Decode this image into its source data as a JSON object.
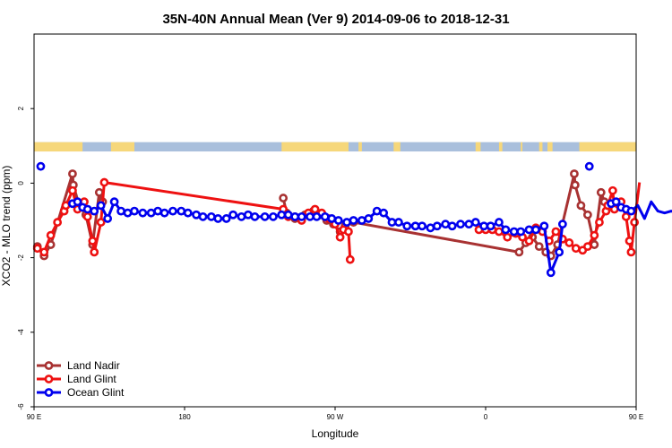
{
  "chart_data": {
    "type": "line",
    "title": "35N-40N Annual Mean (Ver 9)   2014-09-06 to 2018-12-31",
    "xlabel": "Longitude",
    "ylabel": "XCO2 - MLO trend (ppm)",
    "xlim": [
      90,
      450
    ],
    "ylim": [
      -6,
      4
    ],
    "x_ticks": [
      {
        "value": 90,
        "label": "90 E"
      },
      {
        "value": 180,
        "label": "180"
      },
      {
        "value": 270,
        "label": "90 W"
      },
      {
        "value": 360,
        "label": "0"
      },
      {
        "value": 450,
        "label": "90 E"
      },
      {
        "value": 540,
        "label": "180"
      }
    ],
    "y_ticks": [
      {
        "value": -6,
        "label": "-6"
      },
      {
        "value": -4,
        "label": "-4"
      },
      {
        "value": -2,
        "label": "-2"
      },
      {
        "value": 0,
        "label": "0"
      },
      {
        "value": 2,
        "label": "2"
      }
    ],
    "grid": false,
    "legend_position": "bottom-left",
    "land_ocean_band": {
      "y_range": [
        0.85,
        1.1
      ],
      "ocean_color": "#a9bfdc",
      "land_color": "#f6d77a",
      "land_segments": [
        [
          90,
          119
        ],
        [
          136,
          150
        ],
        [
          238,
          278
        ],
        [
          284,
          286
        ],
        [
          305,
          309
        ],
        [
          354,
          357
        ],
        [
          368,
          370
        ],
        [
          381,
          382
        ],
        [
          392,
          394
        ],
        [
          397,
          400
        ],
        [
          416,
          458
        ],
        [
          472,
          486
        ]
      ]
    },
    "series": [
      {
        "name": "Land Nadir",
        "color": "#a83232",
        "points": [
          [
            92,
            -1.7
          ],
          [
            96,
            -1.95
          ],
          [
            100,
            -1.65
          ],
          [
            113,
            0.25
          ],
          [
            113.5,
            -0.05
          ],
          [
            117,
            -0.6
          ],
          [
            121,
            -0.85
          ],
          [
            125,
            -1.65
          ],
          [
            129,
            -0.25
          ],
          [
            131,
            -0.5
          ],
          [
            145,
            null
          ],
          [
            239,
            -0.4
          ],
          [
            241,
            -0.8
          ],
          [
            246,
            -0.95
          ],
          [
            252,
            -0.85
          ],
          [
            257,
            -0.75
          ],
          [
            261,
            -0.85
          ],
          [
            265,
            -1.0
          ],
          [
            269,
            -1.1
          ],
          [
            273,
            -1.3
          ],
          [
            276,
            -1.15
          ],
          [
            281,
            -1.05
          ],
          [
            380,
            -1.85
          ],
          [
            384,
            -1.6
          ],
          [
            388,
            -1.45
          ],
          [
            392,
            -1.7
          ],
          [
            396,
            -1.85
          ],
          [
            399,
            -1.95
          ],
          [
            403,
            -1.65
          ],
          [
            413,
            0.25
          ],
          [
            413.5,
            -0.05
          ],
          [
            417,
            -0.6
          ],
          [
            421,
            -0.85
          ],
          [
            425,
            -1.65
          ],
          [
            429,
            -0.25
          ],
          [
            431,
            -0.5
          ]
        ]
      },
      {
        "name": "Land Glint",
        "color": "#ee1111",
        "points": [
          [
            92,
            -1.75
          ],
          [
            96,
            -1.85
          ],
          [
            100,
            -1.4
          ],
          [
            104,
            -1.05
          ],
          [
            108,
            -0.75
          ],
          [
            109,
            -0.6
          ],
          [
            113,
            -0.2
          ],
          [
            116,
            -0.7
          ],
          [
            120,
            -0.5
          ],
          [
            122,
            -0.9
          ],
          [
            125,
            -1.55
          ],
          [
            126,
            -1.85
          ],
          [
            130,
            -1.05
          ],
          [
            132,
            0.02
          ],
          [
            239,
            -0.7
          ],
          [
            242,
            -0.9
          ],
          [
            246,
            -0.9
          ],
          [
            250,
            -1.0
          ],
          [
            254,
            -0.8
          ],
          [
            258,
            -0.7
          ],
          [
            262,
            -0.8
          ],
          [
            266,
            -0.95
          ],
          [
            270,
            -1.1
          ],
          [
            273,
            -1.45
          ],
          [
            275,
            -1.25
          ],
          [
            278,
            -1.3
          ],
          [
            279,
            -2.05
          ],
          [
            340,
            null
          ],
          [
            356,
            -1.25
          ],
          [
            360,
            -1.25
          ],
          [
            364,
            -1.25
          ],
          [
            368,
            -1.3
          ],
          [
            373,
            -1.45
          ],
          [
            378,
            -1.35
          ],
          [
            382,
            -1.45
          ],
          [
            386,
            -1.55
          ],
          [
            390,
            -1.2
          ],
          [
            394,
            -1.3
          ],
          [
            398,
            -1.55
          ],
          [
            402,
            -1.3
          ],
          [
            406,
            -1.5
          ],
          [
            410,
            -1.6
          ],
          [
            414,
            -1.75
          ],
          [
            418,
            -1.8
          ],
          [
            421,
            -1.7
          ],
          [
            425,
            -1.4
          ],
          [
            428,
            -1.05
          ],
          [
            432,
            -0.75
          ],
          [
            433,
            -0.6
          ],
          [
            436,
            -0.2
          ],
          [
            437,
            -0.7
          ],
          [
            441,
            -0.5
          ],
          [
            444,
            -0.9
          ],
          [
            446,
            -1.55
          ],
          [
            447,
            -1.85
          ],
          [
            449,
            -1.05
          ],
          [
            452,
            0.02
          ]
        ]
      },
      {
        "name": "Ocean Glint",
        "color": "#0000ee",
        "points": [
          [
            94,
            0.45
          ],
          [
            95,
            null
          ],
          [
            113,
            -0.55
          ],
          [
            116,
            -0.5
          ],
          [
            119,
            -0.65
          ],
          [
            122,
            -0.7
          ],
          [
            126,
            -0.75
          ],
          [
            130,
            -0.6
          ],
          [
            134,
            -0.95
          ],
          [
            138,
            -0.5
          ],
          [
            142,
            -0.75
          ],
          [
            146,
            -0.8
          ],
          [
            150,
            -0.75
          ],
          [
            155,
            -0.8
          ],
          [
            160,
            -0.8
          ],
          [
            164,
            -0.75
          ],
          [
            168,
            -0.8
          ],
          [
            173,
            -0.75
          ],
          [
            178,
            -0.75
          ],
          [
            182,
            -0.8
          ],
          [
            187,
            -0.85
          ],
          [
            191,
            -0.9
          ],
          [
            196,
            -0.9
          ],
          [
            200,
            -0.95
          ],
          [
            205,
            -0.95
          ],
          [
            209,
            -0.85
          ],
          [
            214,
            -0.9
          ],
          [
            218,
            -0.85
          ],
          [
            222,
            -0.9
          ],
          [
            228,
            -0.9
          ],
          [
            233,
            -0.9
          ],
          [
            238,
            -0.85
          ],
          [
            242,
            -0.85
          ],
          [
            246,
            -0.9
          ],
          [
            250,
            -0.9
          ],
          [
            255,
            -0.9
          ],
          [
            259,
            -0.9
          ],
          [
            264,
            -0.9
          ],
          [
            268,
            -0.95
          ],
          [
            272,
            -1.0
          ],
          [
            277,
            -1.05
          ],
          [
            281,
            -1.0
          ],
          [
            286,
            -1.0
          ],
          [
            290,
            -0.95
          ],
          [
            295,
            -0.75
          ],
          [
            299,
            -0.8
          ],
          [
            304,
            -1.05
          ],
          [
            308,
            -1.05
          ],
          [
            313,
            -1.15
          ],
          [
            318,
            -1.15
          ],
          [
            322,
            -1.15
          ],
          [
            327,
            -1.2
          ],
          [
            331,
            -1.15
          ],
          [
            336,
            -1.1
          ],
          [
            340,
            -1.15
          ],
          [
            345,
            -1.1
          ],
          [
            350,
            -1.1
          ],
          [
            354,
            -1.05
          ],
          [
            359,
            -1.15
          ],
          [
            363,
            -1.15
          ],
          [
            368,
            -1.05
          ],
          [
            372,
            -1.25
          ],
          [
            377,
            -1.3
          ],
          [
            381,
            -1.3
          ],
          [
            386,
            -1.25
          ],
          [
            390,
            -1.25
          ],
          [
            395,
            -1.15
          ],
          [
            399,
            -2.4
          ],
          [
            404,
            -1.85
          ],
          [
            406,
            -1.1
          ],
          [
            410,
            null
          ],
          [
            422,
            0.45
          ],
          [
            423,
            null
          ],
          [
            435,
            -0.55
          ],
          [
            438,
            -0.5
          ],
          [
            441,
            -0.65
          ],
          [
            444,
            -0.7
          ],
          [
            447,
            -0.75
          ],
          [
            451,
            -0.6
          ],
          [
            455,
            -0.95
          ],
          [
            459,
            -0.5
          ],
          [
            463,
            -0.75
          ],
          [
            467,
            -0.8
          ],
          [
            471,
            -0.75
          ],
          [
            476,
            -0.8
          ],
          [
            481,
            -0.8
          ]
        ]
      }
    ]
  }
}
